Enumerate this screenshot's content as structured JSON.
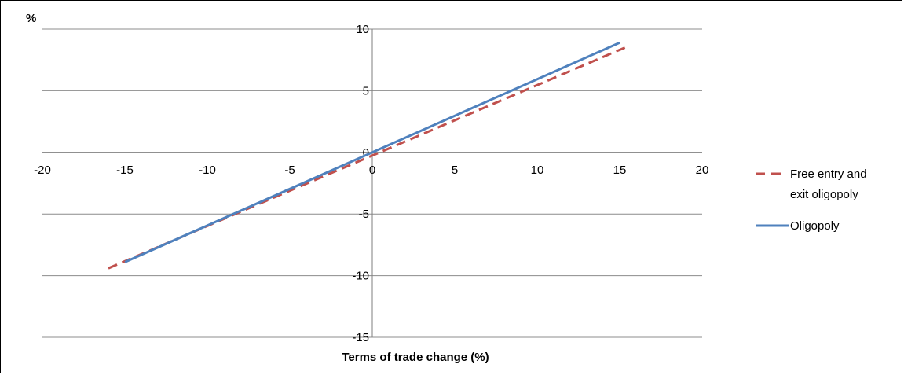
{
  "chart_data": {
    "type": "line",
    "title": "",
    "ylabel": "%",
    "xlabel": "Terms of trade change (%)",
    "xlim": [
      -20,
      20
    ],
    "ylim": [
      -15,
      10
    ],
    "xticks": [
      -20,
      -15,
      -10,
      -5,
      0,
      5,
      10,
      15,
      20
    ],
    "yticks": [
      -15,
      -10,
      -5,
      0,
      5,
      10
    ],
    "grid": "horizontal",
    "legend_position": "right",
    "series": [
      {
        "name": "Free entry and exit oligopoly",
        "style": "dashed",
        "color": "#C0504D",
        "x": [
          -16,
          15.5
        ],
        "y": [
          -9.4,
          8.6
        ]
      },
      {
        "name": "Oligopoly",
        "style": "solid",
        "color": "#4F81BD",
        "x": [
          -15,
          15
        ],
        "y": [
          -8.9,
          8.9
        ]
      }
    ],
    "legend": {
      "free_entry_line1": "Free entry and",
      "free_entry_line2": "exit oligopoly",
      "oligopoly": "Oligopoly"
    }
  }
}
